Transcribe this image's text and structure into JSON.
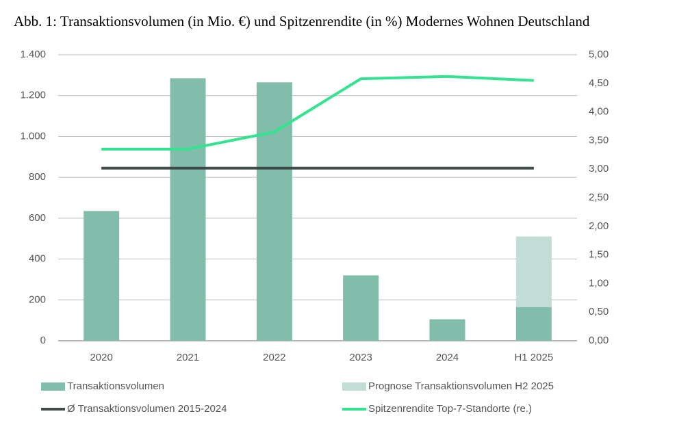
{
  "chart_data": {
    "type": "bar",
    "title": "Abb. 1: Transaktionsvolumen (in Mio. €) und Spitzenrendite (in %) Modernes Wohnen Deutschland",
    "categories": [
      "2020",
      "2021",
      "2022",
      "2023",
      "2024",
      "H1 2025"
    ],
    "stacked": true,
    "series": [
      {
        "name": "Transaktionsvolumen",
        "type": "bar",
        "color": "#82bcab",
        "values": [
          635,
          1285,
          1265,
          320,
          105,
          165
        ]
      },
      {
        "name": "Prognose Transaktionsvolumen H2 2025",
        "type": "bar",
        "color": "#c1ddd5",
        "values": [
          null,
          null,
          null,
          null,
          null,
          345
        ]
      },
      {
        "name": "Ø Transaktionsvolumen 2015-2024",
        "type": "line",
        "color": "#3f4b49",
        "values": [
          845,
          845,
          845,
          845,
          845,
          845
        ]
      },
      {
        "name": "Spitzenrendite Top-7-Standorte (re.)",
        "type": "line",
        "axis": "y2",
        "color": "#34e38f",
        "values": [
          3.35,
          3.35,
          3.65,
          4.58,
          4.62,
          4.55
        ]
      }
    ],
    "ylim": [
      0,
      1400
    ],
    "yticks": [
      0,
      200,
      400,
      600,
      800,
      {
        "value": 1000,
        "label": "1.000"
      },
      {
        "value": 1200,
        "label": "1.200"
      },
      {
        "value": 1400,
        "label": "1.400"
      }
    ],
    "y2lim": [
      0,
      5
    ],
    "y2ticks": [
      {
        "value": 0,
        "label": "0,00"
      },
      {
        "value": 0.5,
        "label": "0,50"
      },
      {
        "value": 1,
        "label": "1,00"
      },
      {
        "value": 1.5,
        "label": "1,50"
      },
      {
        "value": 2,
        "label": "2,00"
      },
      {
        "value": 2.5,
        "label": "2,50"
      },
      {
        "value": 3,
        "label": "3,00"
      },
      {
        "value": 3.5,
        "label": "3,50"
      },
      {
        "value": 4,
        "label": "4,00"
      },
      {
        "value": 4.5,
        "label": "4,50"
      },
      {
        "value": 5,
        "label": "5,00"
      }
    ],
    "grid": true,
    "legend": "bottom"
  }
}
